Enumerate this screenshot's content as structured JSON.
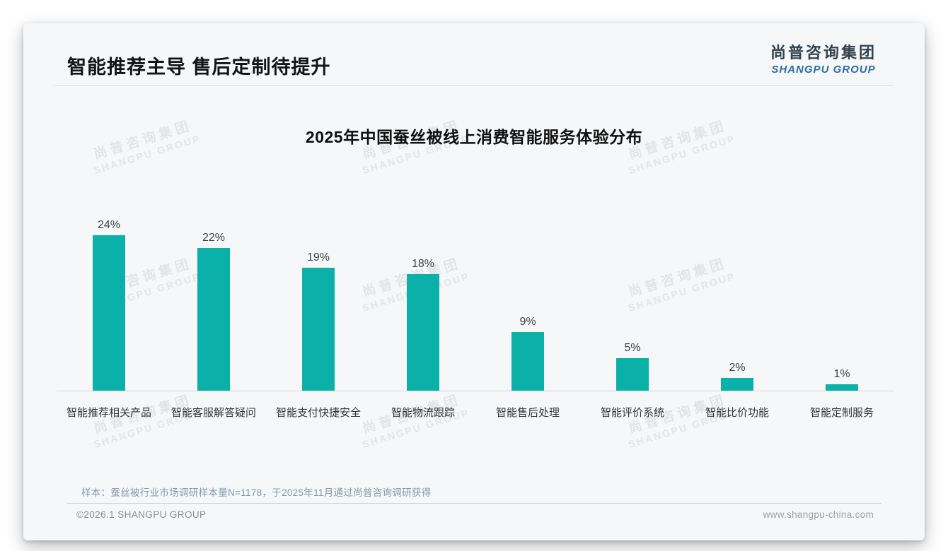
{
  "page": {
    "header": {
      "title": "智能推荐主导 售后定制待提升"
    },
    "logo": {
      "cn": "尚普咨询集团",
      "en": "SHANGPU GROUP"
    },
    "watermark": {
      "cn": "尚普咨询集团",
      "en": "SHANGPU GROUP"
    },
    "note": "样本：蚕丝被行业市场调研样本量N=1178，于2025年11月通过尚普咨询调研获得",
    "footer": {
      "left": "©2026.1 SHANGPU GROUP",
      "right": "www.shangpu-china.com"
    },
    "colors": {
      "bar": "#0bb0a9",
      "logo_cn": "#33424e",
      "logo_en": "#2e6da4",
      "note_text": "#8398ae",
      "watermark": "#e3e4e6"
    }
  },
  "chart_data": {
    "type": "bar",
    "title": "2025年中国蚕丝被线上消费智能服务体验分布",
    "categories": [
      "智能推荐相关产品",
      "智能客服解答疑问",
      "智能支付快捷安全",
      "智能物流跟踪",
      "智能售后处理",
      "智能评价系统",
      "智能比价功能",
      "智能定制服务"
    ],
    "values": [
      24,
      22,
      19,
      18,
      9,
      5,
      2,
      1
    ],
    "value_labels": [
      "24%",
      "22%",
      "19%",
      "18%",
      "9%",
      "5%",
      "2%",
      "1%"
    ],
    "unit": "%",
    "xlabel": "",
    "ylabel": "",
    "ylim": [
      0,
      26
    ],
    "grid": false,
    "legend": null,
    "bar_color": "#0bb0a9"
  }
}
